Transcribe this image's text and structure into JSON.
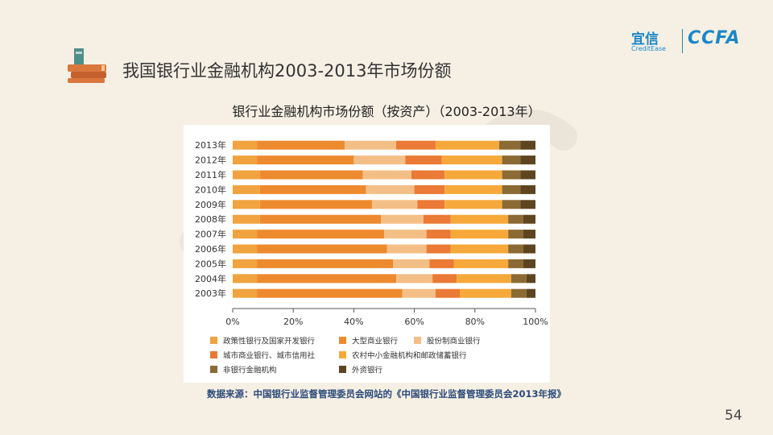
{
  "page": {
    "title": "我国银行业金融机构2003-2013年市场份额",
    "brand_cn": "宜信",
    "brand_en": "CreditEase",
    "brand_ccfa": "CCFA",
    "source": "数据来源：中国银行业监督管理委员会网站的《中国银行业监督管理委员会2013年报》",
    "page_number": "54"
  },
  "chart_data": {
    "type": "bar",
    "orientation": "horizontal",
    "stacked": true,
    "title": "银行业金融机构市场份额（按资产）（2003-2013年）",
    "categories": [
      "2013年",
      "2012年",
      "2011年",
      "2010年",
      "2009年",
      "2008年",
      "2007年",
      "2006年",
      "2005年",
      "2004年",
      "2003年"
    ],
    "x_ticks": [
      "0%",
      "20%",
      "40%",
      "60%",
      "80%",
      "100%"
    ],
    "xlim": [
      0,
      100
    ],
    "legend_position": "bottom",
    "series": [
      {
        "name": "政策性银行及国家开发银行",
        "color": "#f0a33e",
        "values": [
          8,
          8,
          9,
          9,
          9,
          9,
          8,
          8,
          8,
          8,
          8
        ]
      },
      {
        "name": "大型商业银行",
        "color": "#ee8a2e",
        "values": [
          29,
          32,
          34,
          35,
          37,
          40,
          42,
          43,
          45,
          46,
          48
        ]
      },
      {
        "name": "股份制商业银行",
        "color": "#f4bf86",
        "values": [
          17,
          17,
          16,
          16,
          15,
          14,
          14,
          13,
          12,
          12,
          11
        ]
      },
      {
        "name": "城市商业银行、城市信用社",
        "color": "#ea7a35",
        "values": [
          13,
          12,
          11,
          10,
          9,
          9,
          8,
          8,
          8,
          8,
          8
        ]
      },
      {
        "name": "农村中小金融机构和邮政储蓄银行",
        "color": "#f6a93a",
        "values": [
          21,
          20,
          19,
          19,
          19,
          19,
          19,
          19,
          18,
          18,
          17
        ]
      },
      {
        "name": "非银行金融机构",
        "color": "#8c6a33",
        "values": [
          7,
          6,
          6,
          6,
          6,
          5,
          5,
          5,
          5,
          5,
          5
        ]
      },
      {
        "name": "外资银行",
        "color": "#5e4520",
        "values": [
          5,
          5,
          5,
          5,
          5,
          4,
          4,
          4,
          4,
          3,
          3
        ]
      }
    ]
  }
}
